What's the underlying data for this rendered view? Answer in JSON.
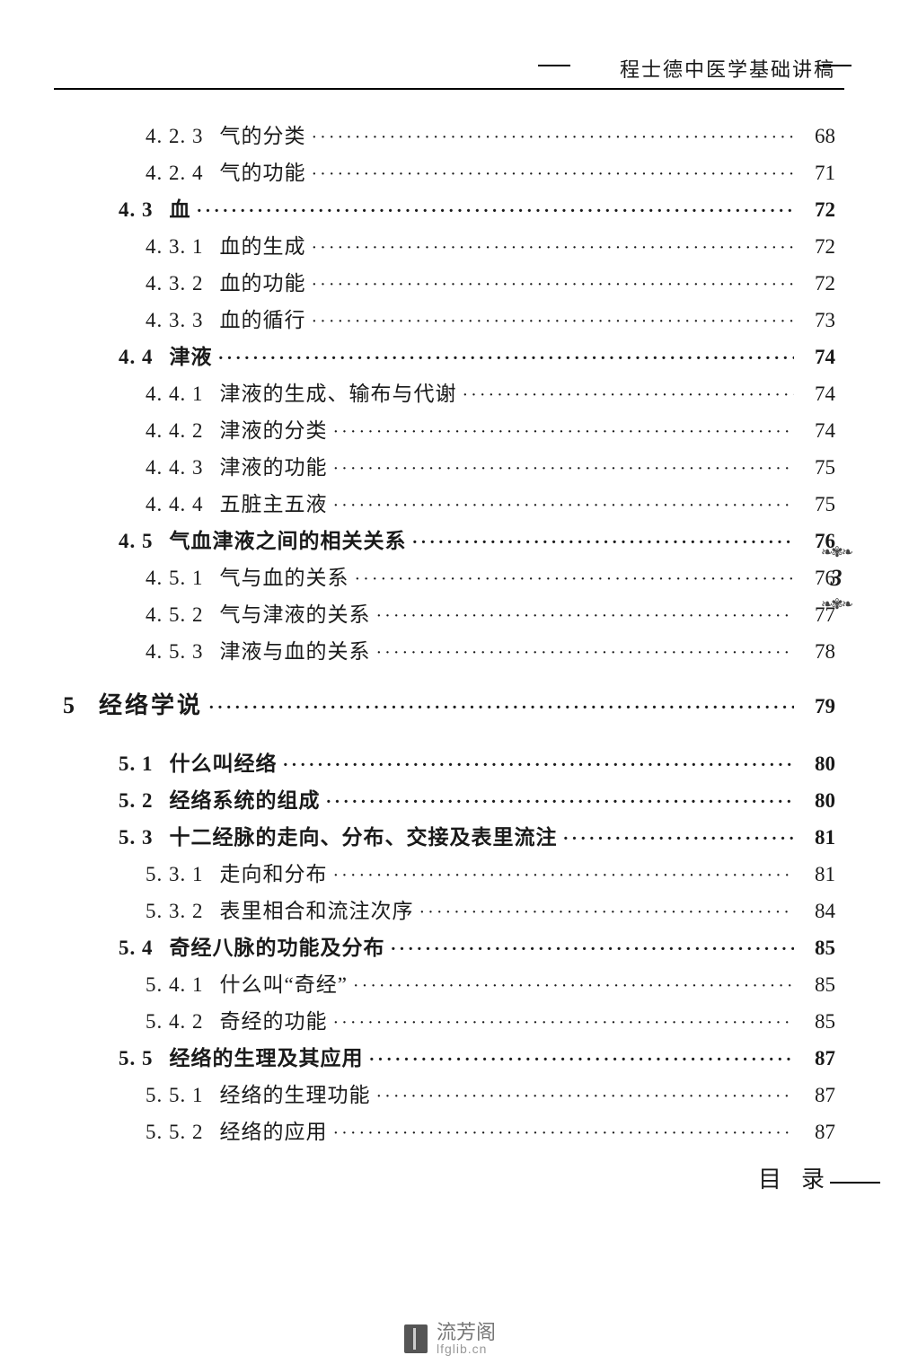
{
  "header_title": "程士德中医学基础讲稿",
  "side_page_number": "3",
  "footer_label": "目录",
  "watermark": {
    "cn": "流芳阁",
    "en": "lfglib.cn"
  },
  "entries": [
    {
      "level": 2,
      "num": "4. 2. 3",
      "title": "气的分类",
      "page": "68"
    },
    {
      "level": 2,
      "num": "4. 2. 4",
      "title": "气的功能",
      "page": "71"
    },
    {
      "level": 1,
      "num": "4. 3",
      "title": "血",
      "page": "72"
    },
    {
      "level": 2,
      "num": "4. 3. 1",
      "title": "血的生成",
      "page": "72"
    },
    {
      "level": 2,
      "num": "4. 3. 2",
      "title": "血的功能",
      "page": "72"
    },
    {
      "level": 2,
      "num": "4. 3. 3",
      "title": "血的循行",
      "page": "73"
    },
    {
      "level": 1,
      "num": "4. 4",
      "title": "津液",
      "page": "74"
    },
    {
      "level": 2,
      "num": "4. 4. 1",
      "title": "津液的生成、输布与代谢",
      "page": "74"
    },
    {
      "level": 2,
      "num": "4. 4. 2",
      "title": "津液的分类",
      "page": "74"
    },
    {
      "level": 2,
      "num": "4. 4. 3",
      "title": "津液的功能",
      "page": "75"
    },
    {
      "level": 2,
      "num": "4. 4. 4",
      "title": "五脏主五液",
      "page": "75"
    },
    {
      "level": 1,
      "num": "4. 5",
      "title": "气血津液之间的相关关系",
      "page": "76"
    },
    {
      "level": 2,
      "num": "4. 5. 1",
      "title": "气与血的关系",
      "page": "76"
    },
    {
      "level": 2,
      "num": "4. 5. 2",
      "title": "气与津液的关系",
      "page": "77"
    },
    {
      "level": 2,
      "num": "4. 5. 3",
      "title": "津液与血的关系",
      "page": "78"
    },
    {
      "level": 0,
      "num": "5",
      "title": "经络学说",
      "page": "79",
      "chapter": true
    },
    {
      "level": 1,
      "num": "5. 1",
      "title": "什么叫经络",
      "page": "80"
    },
    {
      "level": 1,
      "num": "5. 2",
      "title": "经络系统的组成",
      "page": "80"
    },
    {
      "level": 1,
      "num": "5. 3",
      "title": "十二经脉的走向、分布、交接及表里流注",
      "page": "81"
    },
    {
      "level": 2,
      "num": "5. 3. 1",
      "title": "走向和分布",
      "page": "81"
    },
    {
      "level": 2,
      "num": "5. 3. 2",
      "title": "表里相合和流注次序",
      "page": "84"
    },
    {
      "level": 1,
      "num": "5. 4",
      "title": "奇经八脉的功能及分布",
      "page": "85"
    },
    {
      "level": 2,
      "num": "5. 4. 1",
      "title": "什么叫“奇经”",
      "page": "85"
    },
    {
      "level": 2,
      "num": "5. 4. 2",
      "title": "奇经的功能",
      "page": "85"
    },
    {
      "level": 1,
      "num": "5. 5",
      "title": "经络的生理及其应用",
      "page": "87"
    },
    {
      "level": 2,
      "num": "5. 5. 1",
      "title": "经络的生理功能",
      "page": "87"
    },
    {
      "level": 2,
      "num": "5. 5. 2",
      "title": "经络的应用",
      "page": "87"
    }
  ]
}
